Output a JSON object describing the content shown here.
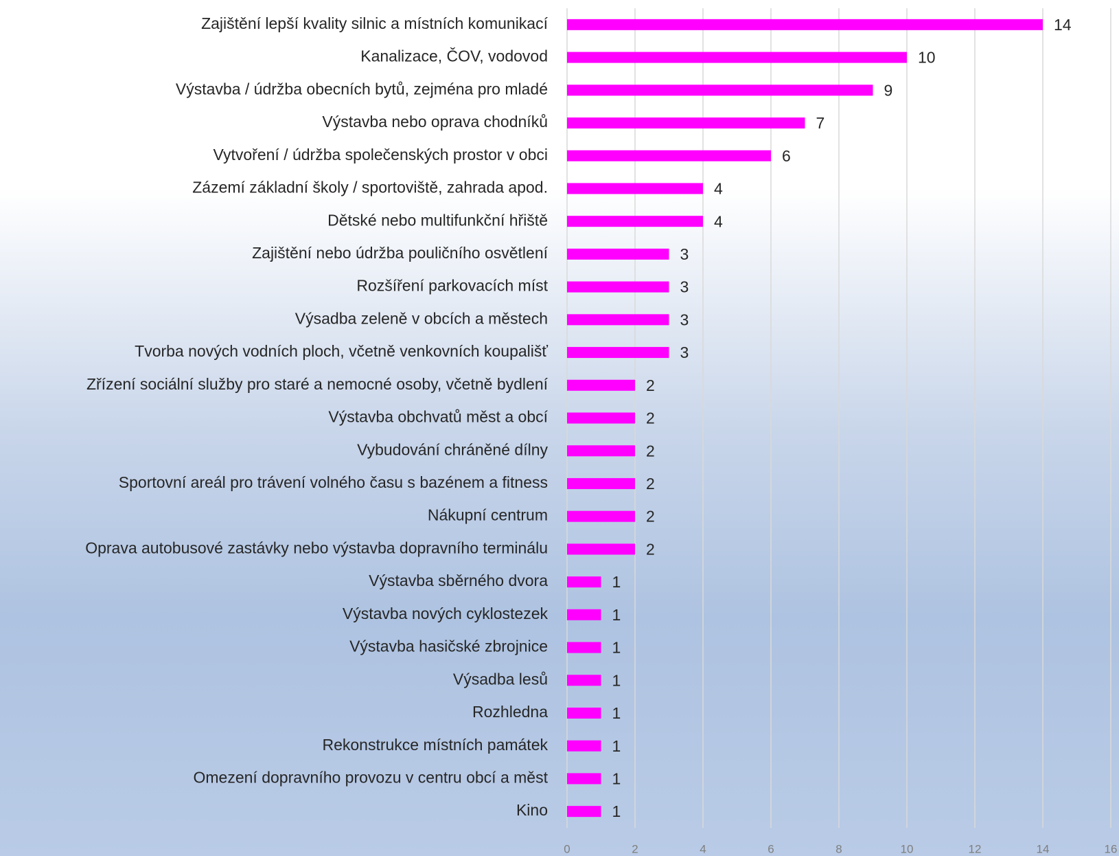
{
  "chart_data": {
    "type": "bar",
    "categories": [
      "Zajištění lepší kvality silnic a místních komunikací",
      "Kanalizace, ČOV, vodovod",
      "Výstavba / údržba obecních bytů, zejména pro mladé",
      "Výstavba nebo oprava chodníků",
      "Vytvoření / údržba společenských prostor v obci",
      "Zázemí základní školy / sportoviště, zahrada apod.",
      "Dětské nebo multifunkční hřiště",
      "Zajištění nebo údržba pouličního osvětlení",
      "Rozšíření parkovacích míst",
      "Výsadba zeleně v obcích a městech",
      "Tvorba nových vodních ploch, včetně venkovních koupališť",
      "Zřízení sociální služby pro staré a nemocné osoby, včetně bydlení",
      "Výstavba obchvatů měst a obcí",
      "Vybudování chráněné dílny",
      "Sportovní areál pro trávení volného času s bazénem a fitness",
      "Nákupní centrum",
      "Oprava autobusové zastávky nebo výstavba dopravního terminálu",
      "Výstavba sběrného dvora",
      "Výstavba nových cyklostezek",
      "Výstavba hasičské zbrojnice",
      "Výsadba lesů",
      "Rozhledna",
      "Rekonstrukce místních památek",
      "Omezení dopravního provozu v centru obcí a měst",
      "Kino"
    ],
    "values": [
      14,
      10,
      9,
      7,
      6,
      4,
      4,
      3,
      3,
      3,
      3,
      2,
      2,
      2,
      2,
      2,
      2,
      1,
      1,
      1,
      1,
      1,
      1,
      1,
      1
    ],
    "color": "#ff00ff",
    "xlim": [
      0,
      16
    ],
    "xticks": [
      0,
      2,
      4,
      6,
      8,
      10,
      12,
      14,
      16
    ],
    "grid": true
  }
}
